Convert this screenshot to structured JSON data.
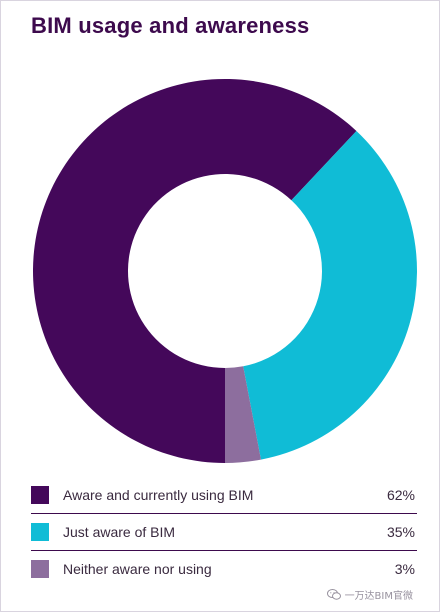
{
  "title": "BIM usage and awareness",
  "chart_data": {
    "type": "pie",
    "style": "donut",
    "title": "BIM usage and awareness",
    "slices": [
      {
        "label": "Aware and currently using BIM",
        "value": 62,
        "display": "62%",
        "color": "#44085a"
      },
      {
        "label": "Just aware of BIM",
        "value": 35,
        "display": "35%",
        "color": "#10bcd6"
      },
      {
        "label": "Neither aware nor using",
        "value": 3,
        "display": "3%",
        "color": "#8d6e9e"
      }
    ],
    "legend_position": "bottom"
  },
  "watermark": {
    "text": "一万达BIM官微",
    "icon": "wechat-icon"
  }
}
